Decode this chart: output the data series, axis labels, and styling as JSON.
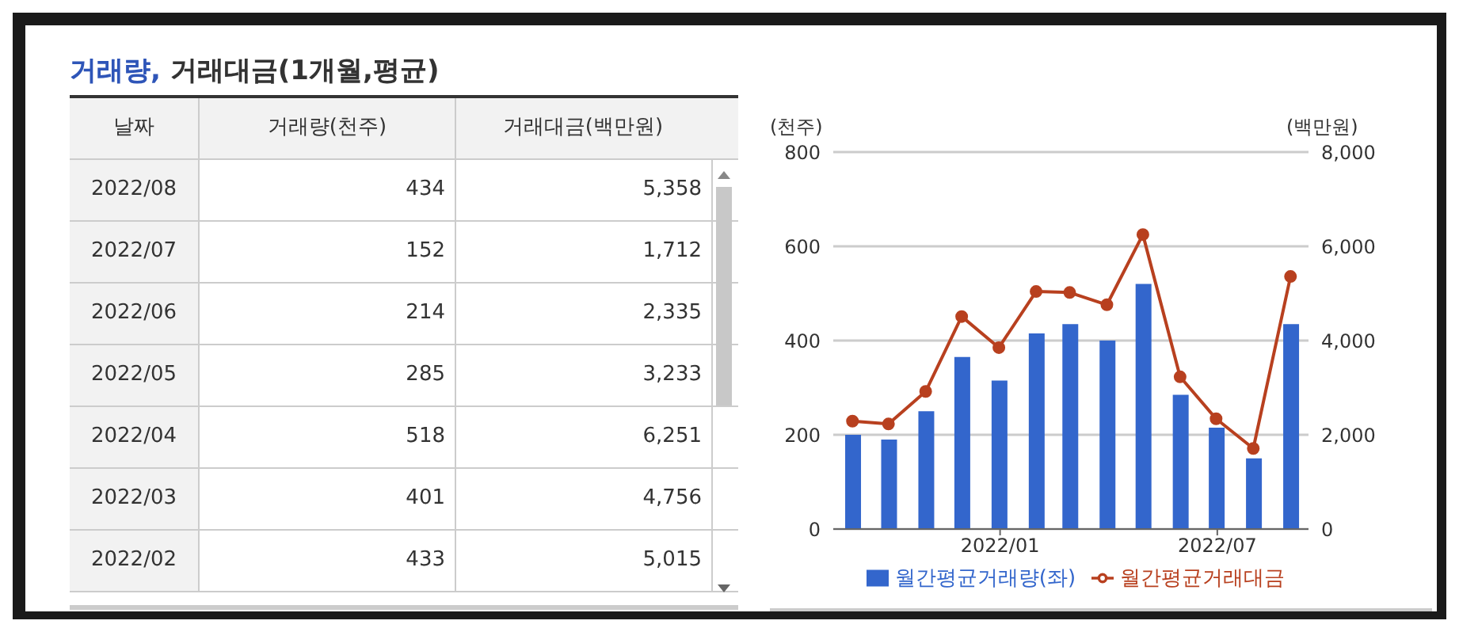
{
  "chart_data": [
    {
      "type": "other",
      "title": "거래량, 거래대금(1개월,평균)",
      "xlabel": "날짜",
      "data_labels": true,
      "categories": [
        "2022/08",
        "2022/07",
        "2022/06",
        "2022/05",
        "2022/04",
        "2022/03",
        "2022/02"
      ],
      "series": [
        {
          "name": "거래량(천주)",
          "values": [
            434,
            152,
            214,
            285,
            518,
            401,
            433
          ]
        },
        {
          "name": "거래대금(백만원)",
          "values": [
            5358,
            1712,
            2335,
            3233,
            6251,
            4756,
            5015
          ],
          "value_labels": [
            "5,358",
            "1,712",
            "2,335",
            "3,233",
            "6,251",
            "4,756",
            "5,015"
          ]
        }
      ]
    },
    {
      "type": "bar",
      "ylabel": "(천주)",
      "y2label": "(백만원)",
      "x": [
        "2021-08-31",
        "2021-09-30",
        "2021-10-31",
        "2021-11-30",
        "2021-12-31",
        "2022-01-31",
        "2022-02-28",
        "2022-03-31",
        "2022-04-30",
        "2022-05-31",
        "2022-06-30",
        "2022-07-31",
        "2022-08-31"
      ],
      "xlim": [
        "2021-08-15",
        "2022-09-15"
      ],
      "xticks": [
        {
          "value": "2022-01-01",
          "label": "2022/01"
        },
        {
          "value": "2022-07-01",
          "label": "2022/07"
        }
      ],
      "series": [
        {
          "name": "월간평균거래량(좌)",
          "type": "bar",
          "axis": "y",
          "color": "#3366cc",
          "values": [
            200,
            190,
            250,
            365,
            315,
            415,
            435,
            400,
            520,
            285,
            215,
            150,
            435
          ]
        },
        {
          "name": "월간평균거래대금",
          "type": "line",
          "axis": "y2",
          "color": "#b8401f",
          "marker": "circle",
          "values": [
            2290,
            2230,
            2920,
            4510,
            3850,
            5040,
            5020,
            4760,
            6250,
            3230,
            2340,
            1710,
            5360
          ]
        }
      ],
      "ylim": [
        0,
        800
      ],
      "yticks": [
        0,
        200,
        400,
        600,
        800
      ],
      "y2lim": [
        0,
        8000
      ],
      "y2ticks": [
        0,
        {
          "value": 2000,
          "label": "2,000"
        },
        {
          "value": 4000,
          "label": "4,000"
        },
        {
          "value": 6000,
          "label": "6,000"
        },
        {
          "value": 8000,
          "label": "8,000"
        }
      ],
      "grid": "y",
      "legend": "bottom"
    }
  ]
}
